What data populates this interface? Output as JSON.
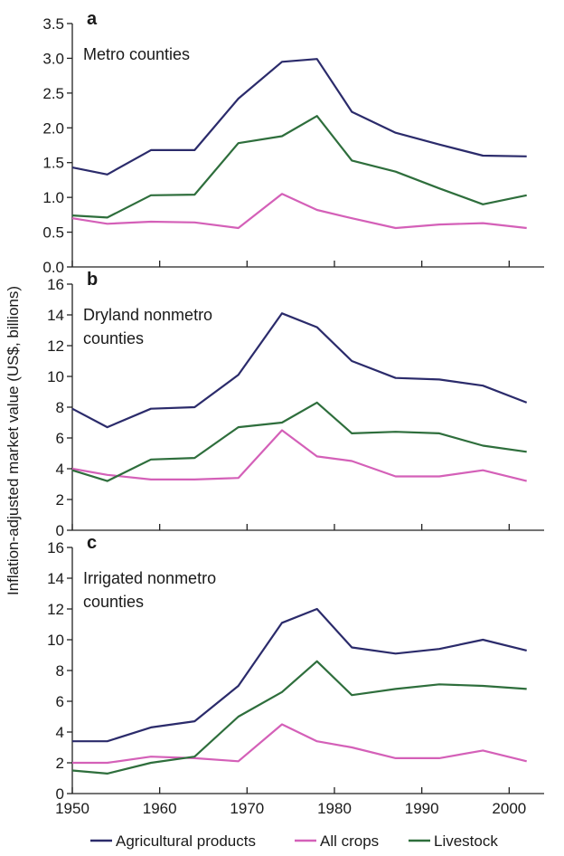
{
  "chart_data": {
    "type": "line",
    "ylabel": "Inflation-adjusted market value (US$, billions)",
    "xlim": [
      1950,
      2004
    ],
    "x_ticks": [
      1950,
      1960,
      1970,
      1980,
      1990,
      2000
    ],
    "x": [
      1950,
      1954,
      1959,
      1964,
      1969,
      1974,
      1978,
      1982,
      1987,
      1992,
      1997,
      2002
    ],
    "series_styles": [
      {
        "name": "Agricultural products",
        "color": "#2b2b6b"
      },
      {
        "name": "All crops",
        "color": "#d460b8"
      },
      {
        "name": "Livestock",
        "color": "#2e6e3c"
      }
    ],
    "legend": [
      "Agricultural products",
      "All crops",
      "Livestock"
    ],
    "legend_position": "bottom",
    "grid": false,
    "panels": [
      {
        "letter": "a",
        "title_lines": [
          "Metro counties"
        ],
        "ylim": [
          0,
          3.5
        ],
        "y_ticks": [
          "0.0",
          "0.5",
          "1.0",
          "1.5",
          "2.0",
          "2.5",
          "3.0",
          "3.5"
        ],
        "series": [
          {
            "name": "Agricultural products",
            "values": [
              1.43,
              1.33,
              1.68,
              1.68,
              2.42,
              2.95,
              2.99,
              2.23,
              1.93,
              1.76,
              1.6,
              1.59
            ]
          },
          {
            "name": "All crops",
            "values": [
              0.7,
              0.62,
              0.65,
              0.64,
              0.56,
              1.05,
              0.82,
              0.7,
              0.56,
              0.61,
              0.63,
              0.56
            ]
          },
          {
            "name": "Livestock",
            "values": [
              0.74,
              0.71,
              1.03,
              1.04,
              1.78,
              1.88,
              2.17,
              1.53,
              1.37,
              1.13,
              0.9,
              1.03
            ]
          }
        ]
      },
      {
        "letter": "b",
        "title_lines": [
          "Dryland nonmetro",
          "counties"
        ],
        "ylim": [
          0,
          16
        ],
        "y_ticks": [
          "0",
          "2",
          "4",
          "6",
          "8",
          "10",
          "12",
          "14",
          "16"
        ],
        "series": [
          {
            "name": "Agricultural products",
            "values": [
              7.9,
              6.7,
              7.9,
              8.0,
              10.1,
              14.1,
              13.2,
              11.0,
              9.9,
              9.8,
              9.4,
              8.3
            ]
          },
          {
            "name": "All crops",
            "values": [
              4.0,
              3.6,
              3.3,
              3.3,
              3.4,
              6.5,
              4.8,
              4.5,
              3.5,
              3.5,
              3.9,
              3.2
            ]
          },
          {
            "name": "Livestock",
            "values": [
              3.9,
              3.2,
              4.6,
              4.7,
              6.7,
              7.0,
              8.3,
              6.3,
              6.4,
              6.3,
              5.5,
              5.1
            ]
          }
        ]
      },
      {
        "letter": "c",
        "title_lines": [
          "Irrigated nonmetro",
          "counties"
        ],
        "ylim": [
          0,
          16
        ],
        "y_ticks": [
          "0",
          "2",
          "4",
          "6",
          "8",
          "10",
          "12",
          "14",
          "16"
        ],
        "series": [
          {
            "name": "Agricultural products",
            "values": [
              3.4,
              3.4,
              4.3,
              4.7,
              7.0,
              11.1,
              12.0,
              9.5,
              9.1,
              9.4,
              10.0,
              9.3
            ]
          },
          {
            "name": "All crops",
            "values": [
              2.0,
              2.0,
              2.4,
              2.3,
              2.1,
              4.5,
              3.4,
              3.0,
              2.3,
              2.3,
              2.8,
              2.1
            ]
          },
          {
            "name": "Livestock",
            "values": [
              1.5,
              1.3,
              2.0,
              2.4,
              5.0,
              6.6,
              8.6,
              6.4,
              6.8,
              7.1,
              7.0,
              6.8
            ]
          }
        ]
      }
    ]
  }
}
